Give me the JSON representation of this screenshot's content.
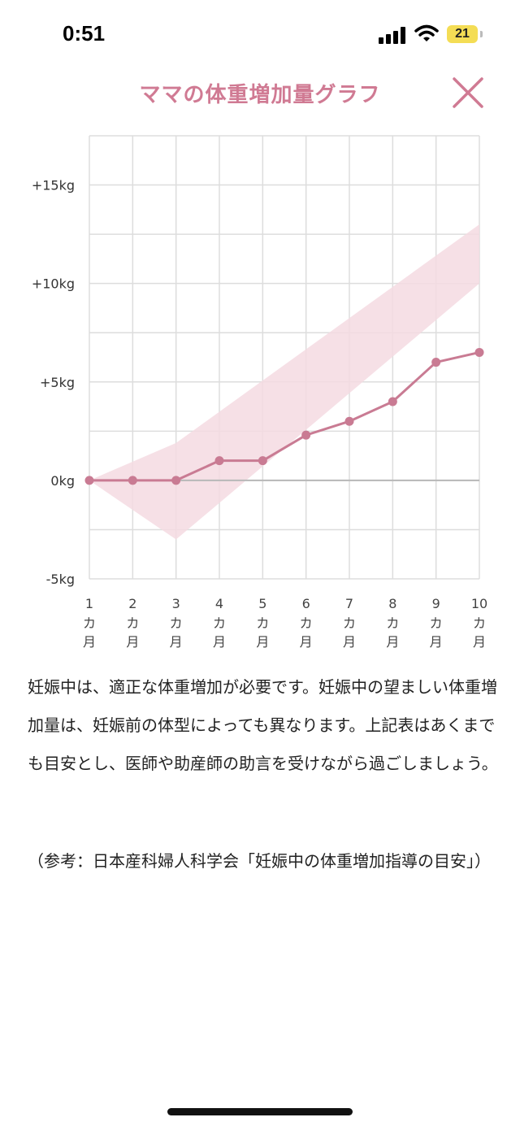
{
  "status_bar": {
    "time": "0:51",
    "battery": "21",
    "icons": [
      "signal-icon",
      "wifi-icon",
      "battery-icon"
    ]
  },
  "header": {
    "title": "ママの体重増加量グラフ",
    "close_icon": "close-icon"
  },
  "colors": {
    "accent": "#d07a93",
    "line": "#c97b93",
    "band": "#f4dbe2",
    "grid": "#dddddd",
    "zero_line": "#b8b8b8"
  },
  "chart_data": {
    "type": "line",
    "x": [
      1,
      2,
      3,
      4,
      5,
      6,
      7,
      8,
      9,
      10
    ],
    "categories": [
      "1\nカ\n月",
      "2\nカ\n月",
      "3\nカ\n月",
      "4\nカ\n月",
      "5\nカ\n月",
      "6\nカ\n月",
      "7\nカ\n月",
      "8\nカ\n月",
      "9\nカ\n月",
      "10\nカ\n月"
    ],
    "x_tick_numbers": [
      "1",
      "2",
      "3",
      "4",
      "5",
      "6",
      "7",
      "8",
      "9",
      "10"
    ],
    "x_tick_unit": [
      "カ",
      "月"
    ],
    "series": [
      {
        "values": [
          0,
          0,
          0,
          1,
          1,
          2.3,
          3,
          4,
          6,
          6.5
        ]
      }
    ],
    "recommended_band": {
      "x": [
        1,
        3,
        10
      ],
      "upper": [
        0,
        1.9,
        13
      ],
      "lower": [
        0,
        -3,
        10
      ]
    },
    "y_ticks": [
      -5,
      0,
      5,
      10,
      15
    ],
    "y_tick_labels": [
      "-5kg",
      "0kg",
      "+5kg",
      "+10kg",
      "+15kg"
    ],
    "ylim": [
      -5,
      17.5
    ],
    "xlim": [
      1,
      10
    ],
    "grid": true,
    "title": "",
    "xlabel": "",
    "ylabel": ""
  },
  "description": "妊娠中は、適正な体重増加が必要です。妊娠中の望ましい体重増加量は、妊娠前の体型によっても異なります。上記表はあくまでも目安とし、医師や助産師の助言を受けながら過ごしましょう。",
  "reference": "（参考：日本産科婦人科学会「妊娠中の体重増加指導の目安」）"
}
